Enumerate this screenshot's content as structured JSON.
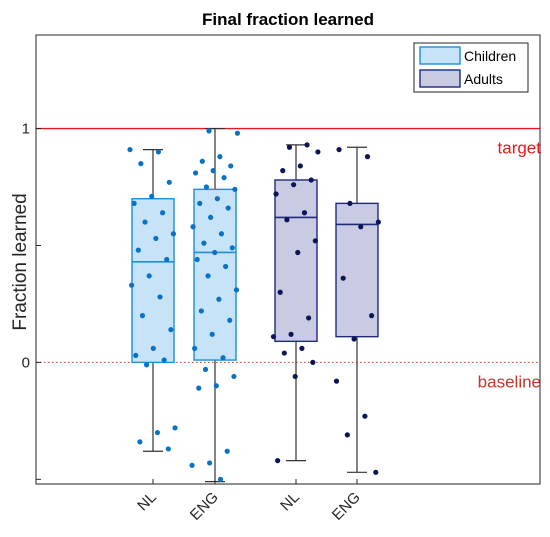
{
  "chart_data": {
    "type": "box",
    "title": "Final fraction learned",
    "xlabel": "",
    "ylabel": "Fraction learned",
    "ylim": [
      -0.52,
      1.4
    ],
    "yticks": [
      0,
      1
    ],
    "categories": [
      "NL",
      "ENG",
      "NL",
      "ENG"
    ],
    "groups": [
      {
        "name": "Children",
        "color": "#1f8fd6",
        "fill": "#c6e3f7",
        "point_color": "#0a72c4"
      },
      {
        "name": "Adults",
        "color": "#1f2a7a",
        "fill": "#c9cbe3",
        "point_color": "#0c1557"
      }
    ],
    "boxes": [
      {
        "category": "NL",
        "group": "Children",
        "whisker_low": -0.38,
        "q1": 0.0,
        "median": 0.43,
        "q3": 0.7,
        "whisker_high": 0.91
      },
      {
        "category": "ENG",
        "group": "Children",
        "whisker_low": -0.51,
        "q1": 0.01,
        "median": 0.47,
        "q3": 0.74,
        "whisker_high": 1.0
      },
      {
        "category": "NL",
        "group": "Adults",
        "whisker_low": -0.42,
        "q1": 0.09,
        "median": 0.62,
        "q3": 0.78,
        "whisker_high": 0.93
      },
      {
        "category": "ENG",
        "group": "Adults",
        "whisker_low": -0.47,
        "q1": 0.11,
        "median": 0.59,
        "q3": 0.68,
        "whisker_high": 0.92
      }
    ],
    "points": [
      [
        0.91,
        0.9,
        0.85,
        0.77,
        0.71,
        0.68,
        0.64,
        0.6,
        0.55,
        0.53,
        0.48,
        0.44,
        0.37,
        0.33,
        0.28,
        0.2,
        0.14,
        0.06,
        0.03,
        0.01,
        -0.01,
        -0.28,
        -0.3,
        -0.34,
        -0.37
      ],
      [
        0.99,
        0.98,
        0.88,
        0.86,
        0.84,
        0.82,
        0.81,
        0.79,
        0.75,
        0.74,
        0.7,
        0.68,
        0.66,
        0.62,
        0.58,
        0.55,
        0.51,
        0.49,
        0.47,
        0.44,
        0.41,
        0.37,
        0.31,
        0.27,
        0.22,
        0.18,
        0.12,
        0.06,
        0.02,
        -0.03,
        -0.06,
        -0.1,
        -0.11,
        -0.38,
        -0.43,
        -0.44,
        -0.5
      ],
      [
        0.93,
        0.92,
        0.9,
        0.84,
        0.82,
        0.78,
        0.76,
        0.72,
        0.64,
        0.61,
        0.52,
        0.47,
        0.3,
        0.19,
        0.12,
        0.11,
        0.06,
        0.04,
        0.0,
        -0.06,
        -0.42
      ],
      [
        0.91,
        0.88,
        0.68,
        0.6,
        0.58,
        0.36,
        0.2,
        0.1,
        -0.08,
        -0.23,
        -0.31,
        -0.47
      ]
    ],
    "reference_lines": [
      {
        "label": "target",
        "y": 1,
        "color": "#e31a1c",
        "style": "solid"
      },
      {
        "label": "baseline",
        "y": 0,
        "color": "#c0392b",
        "style": "dotted"
      }
    ],
    "legend_position": "top-right",
    "grid": false
  }
}
